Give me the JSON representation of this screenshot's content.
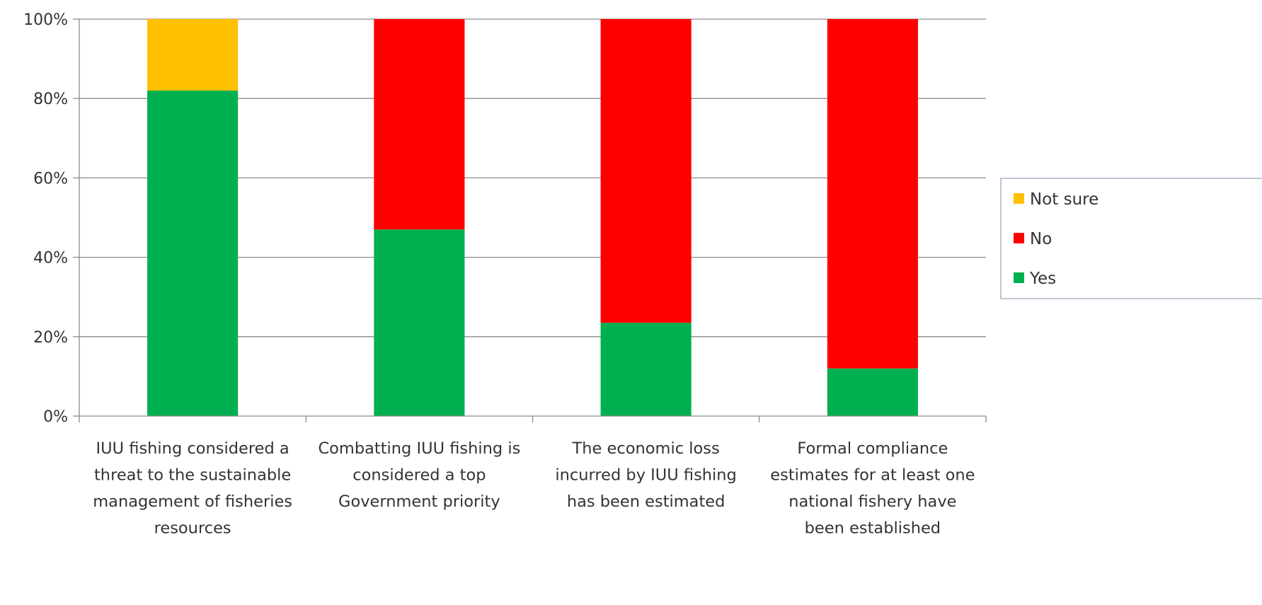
{
  "chart_data": {
    "type": "bar",
    "stacked": true,
    "percent_stacked": true,
    "categories": [
      [
        "IUU fishing considered a",
        "threat to the sustainable",
        "management of fisheries",
        "resources"
      ],
      [
        "Combatting IUU fishing is",
        "considered a top",
        "Government priority"
      ],
      [
        "The economic loss",
        "incurred by IUU fishing",
        "has been estimated"
      ],
      [
        "Formal compliance",
        "estimates for at least one",
        "national fishery have",
        "been established"
      ]
    ],
    "series": [
      {
        "name": "Yes",
        "color": "#00B050",
        "values": [
          82,
          47,
          23.5,
          12
        ]
      },
      {
        "name": "No",
        "color": "#FF0000",
        "values": [
          0,
          53,
          76.5,
          88
        ]
      },
      {
        "name": "Not sure",
        "color": "#FFC000",
        "values": [
          18,
          0,
          0,
          0
        ]
      }
    ],
    "ylim": [
      0,
      100
    ],
    "yticks": [
      "0%",
      "20%",
      "40%",
      "60%",
      "80%",
      "100%"
    ],
    "grid": true,
    "legend_position": "right",
    "legend_order": [
      "Not sure",
      "No",
      "Yes"
    ]
  }
}
